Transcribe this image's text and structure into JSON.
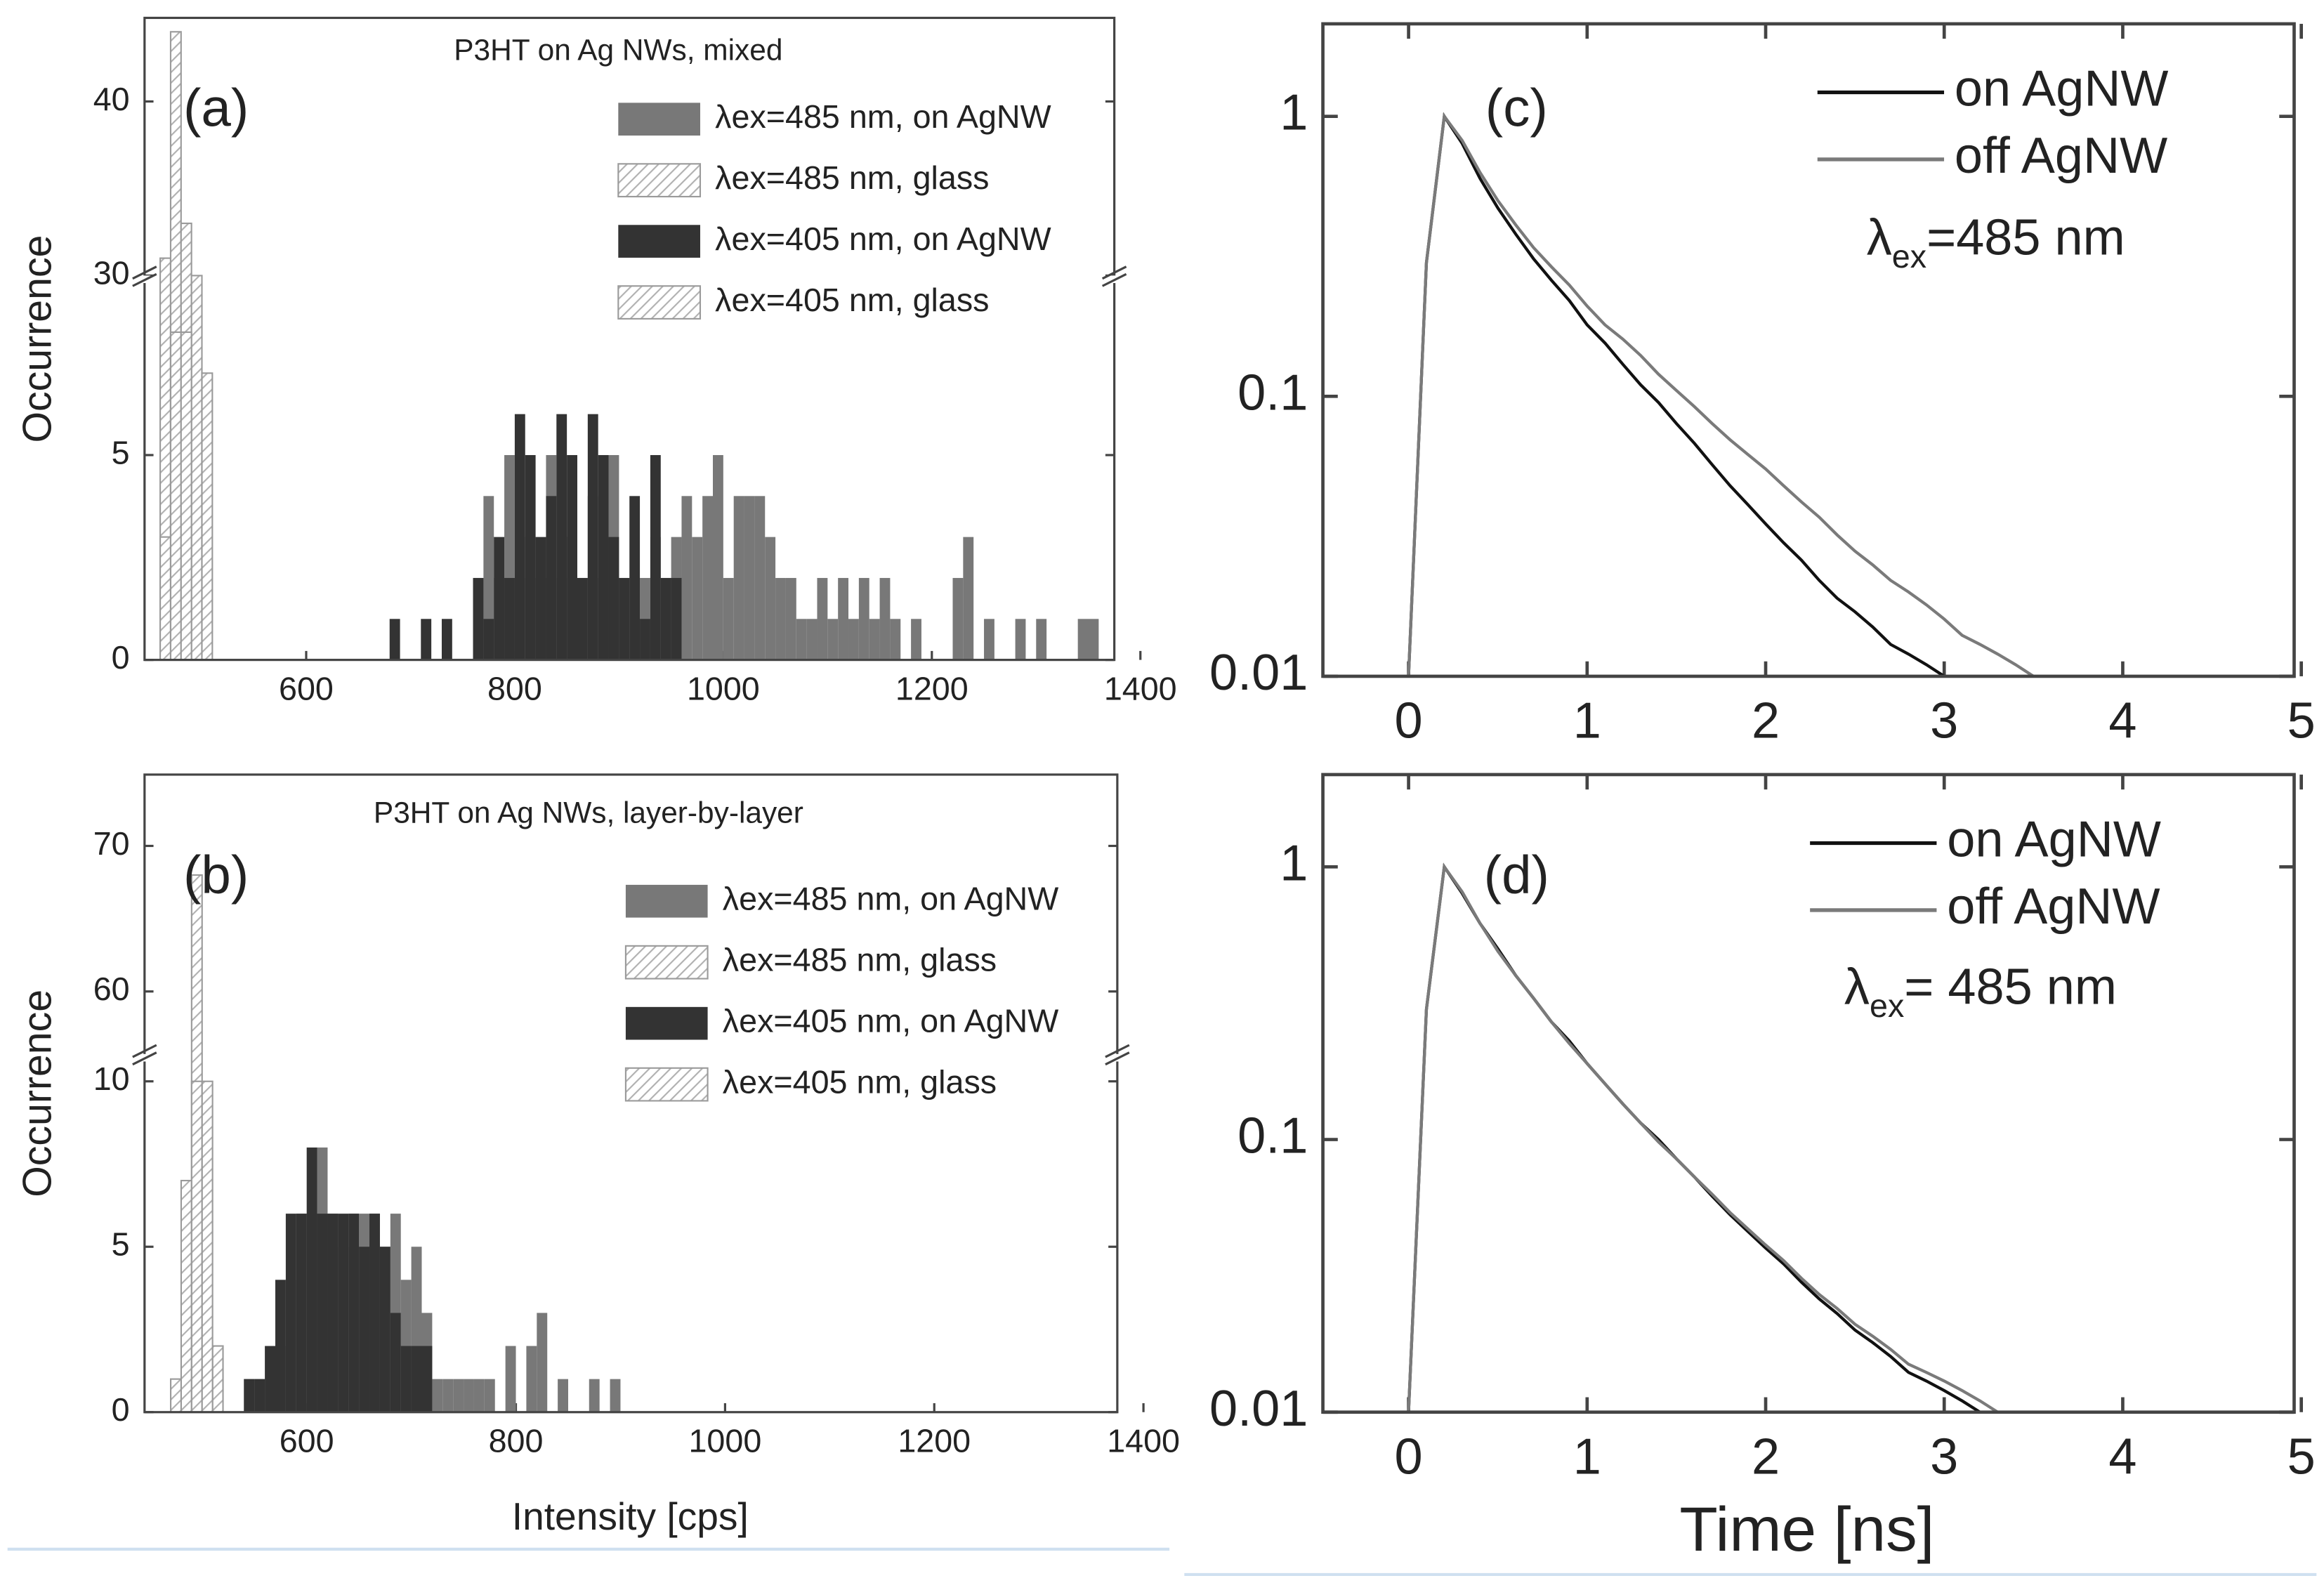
{
  "chart_data": [
    {
      "type": "histogram",
      "title": "P3HT on Ag NWs, mixed",
      "panel_label": "(a)",
      "y_label": "Occurrence",
      "bin_width": 10,
      "xlim": [
        445,
        1375
      ],
      "xticks": [
        600,
        800,
        1000,
        1200,
        1400
      ],
      "ylim_lower": [
        0,
        9.2
      ],
      "ylim_upper": [
        30,
        44.8
      ],
      "yticks": [
        0,
        5,
        30,
        40
      ],
      "series": [
        {
          "name": "λex=485 nm, on AgNW",
          "color": "#787878",
          "hatch": false,
          "x": [
            475,
            485,
            765,
            775,
            785,
            795,
            805,
            815,
            825,
            835,
            845,
            855,
            865,
            875,
            885,
            895,
            905,
            915,
            925,
            935,
            945,
            955,
            965,
            975,
            985,
            995,
            1005,
            1015,
            1025,
            1035,
            1045,
            1055,
            1065,
            1075,
            1085,
            1095,
            1105,
            1115,
            1125,
            1135,
            1145,
            1155,
            1165,
            1185,
            1225,
            1235,
            1255,
            1285,
            1305,
            1345,
            1355
          ],
          "values": [
            2,
            2,
            2,
            4,
            2,
            5,
            2,
            3,
            2,
            5,
            2,
            3,
            2,
            4,
            2,
            5,
            2,
            2,
            2,
            3,
            2,
            3,
            4,
            3,
            4,
            5,
            2,
            4,
            4,
            4,
            3,
            2,
            2,
            1,
            1,
            2,
            1,
            2,
            1,
            2,
            1,
            2,
            1,
            1,
            2,
            3,
            1,
            1,
            1,
            1,
            1
          ]
        },
        {
          "name": "λex=485 nm, glass",
          "color": "#9a9a9a",
          "hatch": true,
          "x": [
            465,
            475,
            485,
            495,
            505
          ],
          "values": [
            31,
            44,
            33,
            30,
            7
          ]
        },
        {
          "name": "λex=405 nm, on AgNW",
          "color": "#333333",
          "hatch": false,
          "x": [
            685,
            715,
            735,
            765,
            775,
            785,
            795,
            805,
            815,
            825,
            835,
            845,
            855,
            865,
            875,
            885,
            895,
            905,
            915,
            925,
            935,
            945,
            955
          ],
          "values": [
            1,
            1,
            1,
            2,
            1,
            3,
            2,
            6,
            5,
            3,
            4,
            6,
            5,
            2,
            6,
            5,
            3,
            2,
            4,
            1,
            5,
            2,
            2
          ]
        },
        {
          "name": "λex=405 nm, glass",
          "color": "#9a9a9a",
          "hatch": true,
          "x": [
            465,
            475,
            485
          ],
          "values": [
            3,
            8,
            8
          ]
        }
      ]
    },
    {
      "type": "histogram",
      "title": "P3HT on Ag NWs, layer-by-layer",
      "panel_label": "(b)",
      "y_label": "Occurrence",
      "x_label": "Intensity [cps]",
      "bin_width": 10,
      "xlim": [
        445,
        1375
      ],
      "xticks": [
        600,
        800,
        1000,
        1200,
        1400
      ],
      "ylim_lower": [
        0,
        10.6
      ],
      "ylim_upper": [
        55.7,
        74.9
      ],
      "yticks": [
        0,
        5,
        10,
        60,
        70
      ],
      "series": [
        {
          "name": "λex=485 nm, on AgNW",
          "color": "#787878",
          "hatch": false,
          "x": [
            545,
            555,
            565,
            575,
            585,
            595,
            605,
            615,
            625,
            635,
            645,
            655,
            665,
            675,
            685,
            695,
            705,
            715,
            725,
            735,
            745,
            755,
            765,
            775,
            795,
            815,
            825,
            845,
            875,
            895
          ],
          "values": [
            1,
            1,
            1,
            2,
            4,
            6,
            6,
            8,
            6,
            5,
            6,
            6,
            6,
            5,
            6,
            4,
            5,
            3,
            1,
            1,
            1,
            1,
            1,
            1,
            2,
            2,
            3,
            1,
            1,
            1
          ]
        },
        {
          "name": "λex=485 nm, glass",
          "color": "#9a9a9a",
          "hatch": true,
          "x": [
            475,
            485,
            495,
            505,
            515
          ],
          "values": [
            1,
            7,
            68,
            11,
            2
          ]
        },
        {
          "name": "λex=405 nm, on AgNW",
          "color": "#333333",
          "hatch": false,
          "x": [
            545,
            555,
            565,
            575,
            585,
            595,
            605,
            615,
            625,
            635,
            645,
            655,
            665,
            675,
            685,
            695,
            705,
            715
          ],
          "values": [
            1,
            1,
            2,
            4,
            6,
            6,
            8,
            6,
            6,
            6,
            6,
            5,
            6,
            5,
            3,
            2,
            2,
            2
          ]
        },
        {
          "name": "λex=405 nm, glass",
          "color": "#9a9a9a",
          "hatch": true,
          "x": [
            495,
            505
          ],
          "values": [
            10,
            10
          ]
        }
      ]
    },
    {
      "type": "line",
      "panel_label": "(c)",
      "log_y": true,
      "annotation": {
        "symbol": "λ",
        "subscript": "ex",
        "text": "=485 nm"
      },
      "xlim": [
        -0.48,
        4.96
      ],
      "xticks": [
        0,
        1,
        2,
        3,
        4,
        5
      ],
      "ylim": [
        0.01,
        2.14
      ],
      "yticks": [
        0.01,
        0.1,
        1
      ],
      "series": [
        {
          "name": "on AgNW",
          "color": "#111111",
          "x": [
            0,
            0.1,
            0.2,
            0.3,
            0.4,
            0.5,
            0.6,
            0.7,
            0.8,
            0.9,
            1,
            1.1,
            1.2,
            1.3,
            1.4,
            1.5,
            1.6,
            1.7,
            1.8,
            1.9,
            2,
            2.1,
            2.2,
            2.3,
            2.4,
            2.5,
            2.6,
            2.7,
            2.8,
            2.9,
            3
          ],
          "values": [
            0.01,
            0.3,
            1,
            0.8,
            0.6,
            0.47,
            0.38,
            0.31,
            0.26,
            0.22,
            0.18,
            0.155,
            0.13,
            0.11,
            0.095,
            0.08,
            0.068,
            0.057,
            0.048,
            0.041,
            0.035,
            0.03,
            0.026,
            0.022,
            0.019,
            0.017,
            0.015,
            0.013,
            0.012,
            0.011,
            0.01
          ]
        },
        {
          "name": "off AgNW",
          "color": "#7a7a7a",
          "x": [
            0,
            0.1,
            0.2,
            0.3,
            0.4,
            0.5,
            0.6,
            0.7,
            0.8,
            0.9,
            1,
            1.1,
            1.2,
            1.3,
            1.4,
            1.5,
            1.6,
            1.7,
            1.8,
            1.9,
            2,
            2.1,
            2.2,
            2.3,
            2.4,
            2.5,
            2.6,
            2.7,
            2.8,
            2.9,
            3,
            3.1,
            3.2,
            3.3,
            3.4,
            3.5
          ],
          "values": [
            0.01,
            0.3,
            1,
            0.82,
            0.63,
            0.5,
            0.41,
            0.34,
            0.29,
            0.25,
            0.21,
            0.18,
            0.16,
            0.14,
            0.12,
            0.105,
            0.092,
            0.08,
            0.07,
            0.062,
            0.055,
            0.048,
            0.042,
            0.037,
            0.032,
            0.028,
            0.025,
            0.022,
            0.02,
            0.018,
            0.016,
            0.014,
            0.013,
            0.012,
            0.011,
            0.01
          ]
        }
      ]
    },
    {
      "type": "line",
      "panel_label": "(d)",
      "log_y": true,
      "x_label": "Time [ns]",
      "annotation": {
        "symbol": "λ",
        "subscript": "ex",
        "text": "= 485 nm"
      },
      "xlim": [
        -0.48,
        4.96
      ],
      "xticks": [
        0,
        1,
        2,
        3,
        4,
        5
      ],
      "ylim": [
        0.01,
        2.18
      ],
      "yticks": [
        0.01,
        0.1,
        1
      ],
      "series": [
        {
          "name": "on AgNW",
          "color": "#111111",
          "x": [
            0,
            0.1,
            0.2,
            0.3,
            0.4,
            0.5,
            0.6,
            0.7,
            0.8,
            0.9,
            1,
            1.1,
            1.2,
            1.3,
            1.4,
            1.5,
            1.6,
            1.7,
            1.8,
            1.9,
            2,
            2.1,
            2.2,
            2.3,
            2.4,
            2.5,
            2.6,
            2.7,
            2.8,
            2.9,
            3,
            3.1,
            3.2
          ],
          "values": [
            0.01,
            0.3,
            1,
            0.8,
            0.62,
            0.5,
            0.4,
            0.33,
            0.27,
            0.23,
            0.19,
            0.16,
            0.135,
            0.115,
            0.1,
            0.085,
            0.073,
            0.062,
            0.053,
            0.046,
            0.04,
            0.035,
            0.03,
            0.026,
            0.023,
            0.02,
            0.018,
            0.016,
            0.014,
            0.013,
            0.012,
            0.011,
            0.01
          ]
        },
        {
          "name": "off AgNW",
          "color": "#7a7a7a",
          "x": [
            0,
            0.1,
            0.2,
            0.3,
            0.4,
            0.5,
            0.6,
            0.7,
            0.8,
            0.9,
            1,
            1.1,
            1.2,
            1.3,
            1.4,
            1.5,
            1.6,
            1.7,
            1.8,
            1.9,
            2,
            2.1,
            2.2,
            2.3,
            2.4,
            2.5,
            2.6,
            2.7,
            2.8,
            2.9,
            3,
            3.1,
            3.2,
            3.3
          ],
          "values": [
            0.01,
            0.3,
            1,
            0.81,
            0.62,
            0.49,
            0.4,
            0.33,
            0.27,
            0.225,
            0.19,
            0.16,
            0.135,
            0.115,
            0.098,
            0.085,
            0.073,
            0.063,
            0.054,
            0.047,
            0.041,
            0.036,
            0.031,
            0.027,
            0.024,
            0.021,
            0.019,
            0.017,
            0.015,
            0.014,
            0.013,
            0.012,
            0.011,
            0.01
          ]
        }
      ]
    }
  ]
}
